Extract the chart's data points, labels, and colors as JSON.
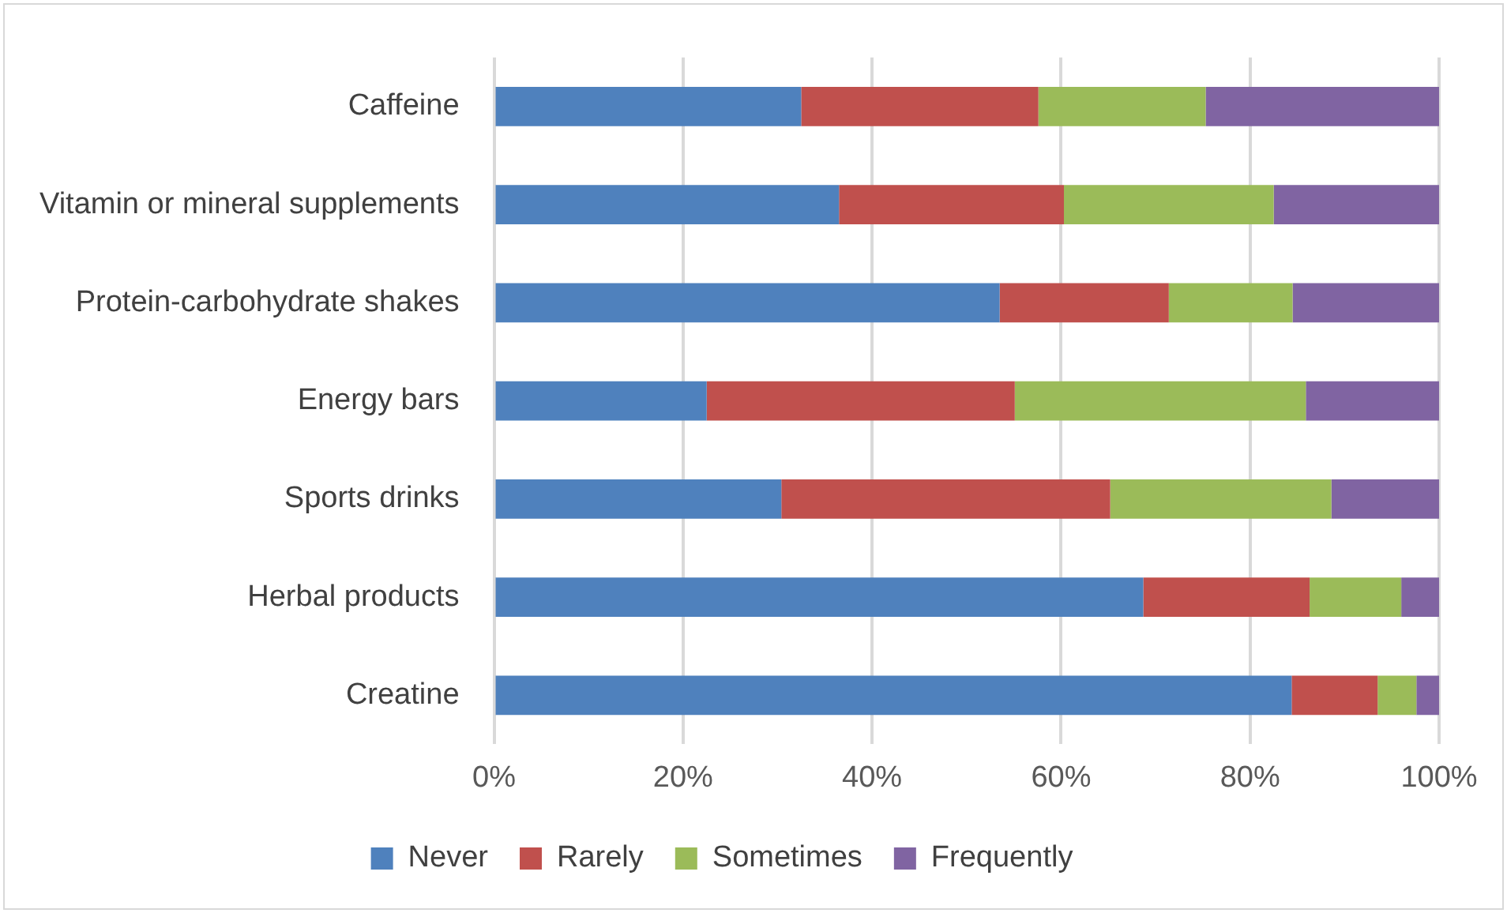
{
  "chart_data": {
    "type": "bar",
    "orientation": "horizontal",
    "stacked": true,
    "categories": [
      "Caffeine",
      "Vitamin or mineral supplements",
      "Protein-carbohydrate shakes",
      "Energy bars",
      "Sports drinks",
      "Herbal products",
      "Creatine"
    ],
    "series": [
      {
        "name": "Never",
        "color": "#4f81bd",
        "values": [
          32.5,
          36.5,
          53.5,
          22.5,
          30.4,
          68.7,
          84.4
        ]
      },
      {
        "name": "Rarely",
        "color": "#c0504d",
        "values": [
          25.1,
          23.8,
          17.9,
          32.6,
          34.8,
          17.6,
          9.1
        ]
      },
      {
        "name": "Sometimes",
        "color": "#9bbb59",
        "values": [
          17.7,
          22.2,
          13.1,
          30.8,
          23.4,
          9.7,
          4.1
        ]
      },
      {
        "name": "Frequently",
        "color": "#8064a2",
        "values": [
          24.7,
          17.5,
          15.5,
          14.1,
          11.4,
          4.0,
          2.4
        ]
      }
    ],
    "xlim": [
      0,
      100
    ],
    "xticks": [
      {
        "value": 0,
        "label": "0%"
      },
      {
        "value": 20,
        "label": "20%"
      },
      {
        "value": 40,
        "label": "40%"
      },
      {
        "value": 60,
        "label": "60%"
      },
      {
        "value": 80,
        "label": "80%"
      },
      {
        "value": 100,
        "label": "100%"
      }
    ],
    "grid": "x",
    "legend": "bottom"
  }
}
